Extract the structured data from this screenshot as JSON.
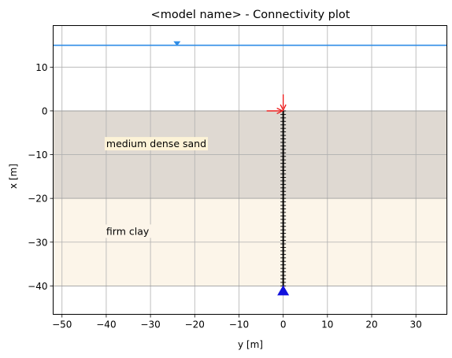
{
  "chart_data": {
    "type": "connectivity-plot",
    "title": "<model name> - Connectivity plot",
    "xlabel": "y [m]",
    "ylabel": "x [m]",
    "xlim": [
      -52,
      37
    ],
    "ylim": [
      -46.5,
      19.5
    ],
    "xticks": [
      -50,
      -40,
      -30,
      -20,
      -10,
      0,
      10,
      20,
      30
    ],
    "yticks": [
      -40,
      -30,
      -20,
      -10,
      0,
      10
    ],
    "grid": true,
    "water_level": {
      "elevation": 15,
      "marker_y": -24,
      "color": "#2e8ce6"
    },
    "soil_layers": [
      {
        "label": "medium dense sand",
        "top": 0,
        "bottom": -20,
        "color": "#dfd9d2",
        "label_color": "#fdf3d7",
        "label_y": -40,
        "label_x": -7.5
      },
      {
        "label": "firm clay",
        "top": -20,
        "bottom": -40,
        "color": "#fcf5e9",
        "label_color": "#fcf5e9",
        "label_y": -40,
        "label_x": -27.5
      }
    ],
    "pile": {
      "y": 0,
      "top": 0,
      "bottom": -40,
      "node_spacing": 0.8,
      "color": "#000000"
    },
    "loads": [
      {
        "kind": "vertical",
        "color": "#ee1111"
      },
      {
        "kind": "horizontal",
        "color": "#ee1111"
      }
    ],
    "support": {
      "y": 0,
      "x": -41,
      "color": "#1010dd"
    }
  }
}
